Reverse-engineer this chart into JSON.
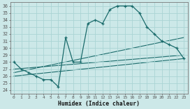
{
  "xlabel": "Humidex (Indice chaleur)",
  "xlim": [
    -0.5,
    23.5
  ],
  "ylim": [
    23.5,
    36.5
  ],
  "yticks": [
    24,
    25,
    26,
    27,
    28,
    29,
    30,
    31,
    32,
    33,
    34,
    35,
    36
  ],
  "xticks": [
    0,
    1,
    2,
    3,
    4,
    5,
    6,
    7,
    8,
    9,
    10,
    11,
    12,
    13,
    14,
    15,
    16,
    17,
    18,
    19,
    20,
    21,
    22,
    23
  ],
  "bg_color": "#cce8e8",
  "grid_color": "#b0d8d8",
  "line_color": "#1a6b6b",
  "main_series": {
    "x": [
      0,
      1,
      2,
      3,
      4,
      5,
      6,
      7,
      8,
      9,
      10,
      11,
      12,
      13,
      14,
      15,
      16,
      17,
      18,
      19,
      20,
      21,
      22,
      23
    ],
    "y": [
      28,
      27,
      26.5,
      26,
      25.5,
      25.5,
      24.5,
      31.5,
      28,
      28,
      33.5,
      34,
      33.5,
      35.5,
      36,
      36,
      36,
      35,
      33,
      32,
      31,
      30.5,
      30,
      28.5
    ]
  },
  "diag_lines": [
    {
      "x": [
        0,
        23
      ],
      "y": [
        27.0,
        29.0
      ]
    },
    {
      "x": [
        0,
        23
      ],
      "y": [
        26.5,
        31.5
      ]
    },
    {
      "x": [
        0,
        23
      ],
      "y": [
        26.0,
        28.5
      ]
    }
  ]
}
